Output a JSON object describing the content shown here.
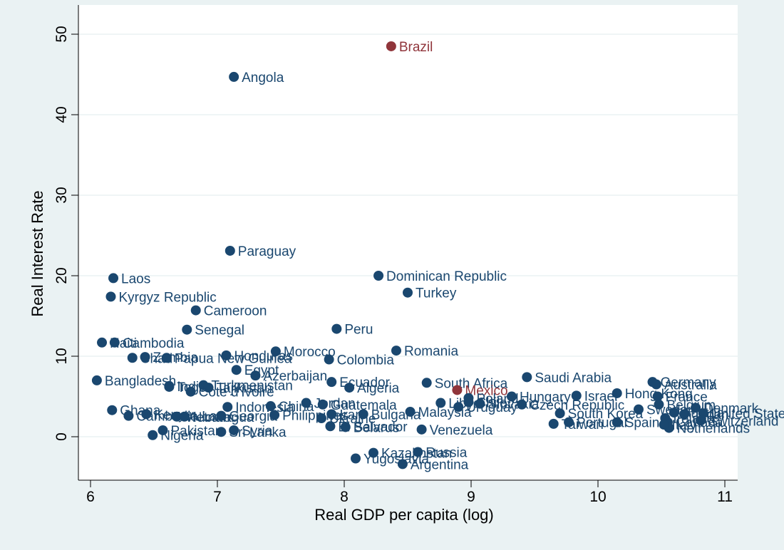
{
  "chart_data": {
    "type": "scatter",
    "title": "",
    "xlabel": "Real GDP per capita (log)",
    "ylabel": "Real Interest Rate",
    "xlim": [
      6,
      11
    ],
    "ylim": [
      -4.2,
      52
    ],
    "xticks": [
      6,
      7,
      8,
      9,
      10,
      11
    ],
    "yticks": [
      0,
      10,
      20,
      30,
      40,
      50
    ],
    "grid": "horizontal",
    "colors": {
      "default": "#1a476f",
      "highlight": "#90353b",
      "grid": "#eaf2f3",
      "background": "#eaf2f3",
      "plot_background": "#ffffff"
    },
    "points": [
      {
        "label": "Brazil",
        "x": 8.37,
        "y": 48.5,
        "highlight": true
      },
      {
        "label": "Angola",
        "x": 7.13,
        "y": 44.7
      },
      {
        "label": "Paraguay",
        "x": 7.1,
        "y": 23.1
      },
      {
        "label": "Dominican Republic",
        "x": 8.27,
        "y": 20.0
      },
      {
        "label": "Laos",
        "x": 6.18,
        "y": 19.7
      },
      {
        "label": "Turkey",
        "x": 8.5,
        "y": 17.9
      },
      {
        "label": "Kyrgyz Republic",
        "x": 6.16,
        "y": 17.4
      },
      {
        "label": "Cameroon",
        "x": 6.83,
        "y": 15.7
      },
      {
        "label": "Senegal",
        "x": 6.76,
        "y": 13.3
      },
      {
        "label": "Peru",
        "x": 7.94,
        "y": 13.4
      },
      {
        "label": "Haiti",
        "x": 6.09,
        "y": 11.7
      },
      {
        "label": "Cambodia",
        "x": 6.19,
        "y": 11.7
      },
      {
        "label": "Romania",
        "x": 8.41,
        "y": 10.7
      },
      {
        "label": "Morocco",
        "x": 7.46,
        "y": 10.6
      },
      {
        "label": "Honduras",
        "x": 7.07,
        "y": 10.1
      },
      {
        "label": "Zambia",
        "x": 6.43,
        "y": 9.9
      },
      {
        "label": "Chad",
        "x": 6.33,
        "y": 9.8
      },
      {
        "label": "Papua New Guinea",
        "x": 6.6,
        "y": 9.8
      },
      {
        "label": "Colombia",
        "x": 7.88,
        "y": 9.6
      },
      {
        "label": "Egypt",
        "x": 7.15,
        "y": 8.3
      },
      {
        "label": "Azerbaijan",
        "x": 7.3,
        "y": 7.6
      },
      {
        "label": "Saudi Arabia",
        "x": 9.44,
        "y": 7.4
      },
      {
        "label": "Bangladesh",
        "x": 6.05,
        "y": 7.0
      },
      {
        "label": "Ecuador",
        "x": 7.9,
        "y": 6.8
      },
      {
        "label": "South Africa",
        "x": 8.65,
        "y": 6.7
      },
      {
        "label": "Germany",
        "x": 10.43,
        "y": 6.8
      },
      {
        "label": "Australia",
        "x": 10.46,
        "y": 6.5
      },
      {
        "label": "India",
        "x": 6.62,
        "y": 6.3
      },
      {
        "label": "Togo",
        "x": 6.62,
        "y": 6.2
      },
      {
        "label": "Turkmenistan",
        "x": 6.89,
        "y": 6.4
      },
      {
        "label": "Tajikistan",
        "x": 6.93,
        "y": 6.1
      },
      {
        "label": "Algeria",
        "x": 8.04,
        "y": 6.1
      },
      {
        "label": "Mexico",
        "x": 8.89,
        "y": 5.8,
        "highlight": true
      },
      {
        "label": "Cote d'Ivoire",
        "x": 6.79,
        "y": 5.6
      },
      {
        "label": "Hong Kong",
        "x": 10.15,
        "y": 5.4
      },
      {
        "label": "France",
        "x": 10.47,
        "y": 5.0
      },
      {
        "label": "Israel",
        "x": 9.83,
        "y": 5.1
      },
      {
        "label": "Hungary",
        "x": 9.32,
        "y": 5.0
      },
      {
        "label": "Libya",
        "x": 8.76,
        "y": 4.2
      },
      {
        "label": "Chile",
        "x": 8.98,
        "y": 4.3
      },
      {
        "label": "Poland",
        "x": 8.98,
        "y": 4.8
      },
      {
        "label": "Slovakia",
        "x": 9.07,
        "y": 4.1
      },
      {
        "label": "Czech Republic",
        "x": 9.4,
        "y": 4.0
      },
      {
        "label": "Belgium",
        "x": 10.48,
        "y": 4.0
      },
      {
        "label": "Uruguay",
        "x": 8.9,
        "y": 3.7
      },
      {
        "label": "Jordan",
        "x": 7.7,
        "y": 4.2
      },
      {
        "label": "Guatemala",
        "x": 7.83,
        "y": 4.0
      },
      {
        "label": "Indonesia",
        "x": 7.08,
        "y": 3.7
      },
      {
        "label": "China",
        "x": 7.42,
        "y": 3.8
      },
      {
        "label": "Denmark",
        "x": 10.77,
        "y": 3.6
      },
      {
        "label": "Malaysia",
        "x": 8.52,
        "y": 3.1
      },
      {
        "label": "Ghana",
        "x": 6.17,
        "y": 3.3
      },
      {
        "label": "Kenya",
        "x": 6.44,
        "y": 2.8
      },
      {
        "label": "Cambodia Lao",
        "x": 6.3,
        "y": 2.6
      },
      {
        "label": "Vietnam",
        "x": 6.68,
        "y": 2.5
      },
      {
        "label": "Nicaragua",
        "x": 6.74,
        "y": 2.5
      },
      {
        "label": "Georgia",
        "x": 7.03,
        "y": 2.6
      },
      {
        "label": "Philippines",
        "x": 7.45,
        "y": 2.7
      },
      {
        "label": "Ukraine",
        "x": 7.82,
        "y": 2.3
      },
      {
        "label": "Iran",
        "x": 7.9,
        "y": 2.8
      },
      {
        "label": "Bulgaria",
        "x": 8.15,
        "y": 2.8
      },
      {
        "label": "El Salvador",
        "x": 7.89,
        "y": 1.3
      },
      {
        "label": "Belarus",
        "x": 8.01,
        "y": 1.2
      },
      {
        "label": "South Korea",
        "x": 9.7,
        "y": 2.9
      },
      {
        "label": "Sweden",
        "x": 10.32,
        "y": 3.4
      },
      {
        "label": "Austria",
        "x": 10.6,
        "y": 3.0
      },
      {
        "label": "Japan",
        "x": 10.68,
        "y": 2.8
      },
      {
        "label": "United States",
        "x": 10.83,
        "y": 2.9
      },
      {
        "label": "Switzerland",
        "x": 10.81,
        "y": 2.0
      },
      {
        "label": "Ireland",
        "x": 10.53,
        "y": 2.3
      },
      {
        "label": "Canada",
        "x": 10.55,
        "y": 1.8
      },
      {
        "label": "Netherlands",
        "x": 10.56,
        "y": 1.1
      },
      {
        "label": "Italy",
        "x": 10.52,
        "y": 1.5
      },
      {
        "label": "Spain",
        "x": 10.15,
        "y": 1.8
      },
      {
        "label": "Portugal",
        "x": 9.77,
        "y": 1.8
      },
      {
        "label": "Taiwan",
        "x": 9.65,
        "y": 1.6
      },
      {
        "label": "Venezuela",
        "x": 8.61,
        "y": 0.9
      },
      {
        "label": "Pakistan",
        "x": 6.57,
        "y": 0.8
      },
      {
        "label": "Syria",
        "x": 7.13,
        "y": 0.8
      },
      {
        "label": "Sri Lanka",
        "x": 7.03,
        "y": 0.6
      },
      {
        "label": "Nigeria",
        "x": 6.49,
        "y": 0.2
      },
      {
        "label": "Kazakhstan",
        "x": 8.23,
        "y": -2.0
      },
      {
        "label": "Russia",
        "x": 8.58,
        "y": -1.9
      },
      {
        "label": "Yugoslavia",
        "x": 8.09,
        "y": -2.7
      },
      {
        "label": "Argentina",
        "x": 8.46,
        "y": -3.4
      }
    ]
  }
}
